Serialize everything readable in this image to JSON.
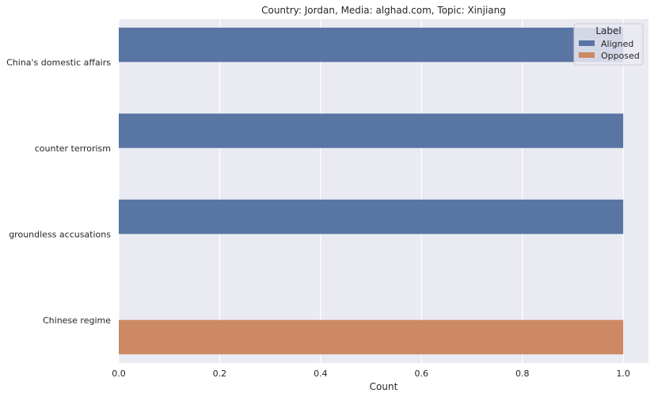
{
  "chart_data": {
    "type": "bar",
    "orientation": "horizontal",
    "title": "Country: Jordan, Media: alghad.com, Topic: Xinjiang",
    "xlabel": "Count",
    "ylabel": "",
    "categories": [
      "China's domestic affairs",
      "counter terrorism",
      "groundless accusations",
      "Chinese regime"
    ],
    "series": [
      {
        "name": "Aligned",
        "color": "#5875a4",
        "values": [
          1,
          1,
          1,
          0
        ]
      },
      {
        "name": "Opposed",
        "color": "#cc8963",
        "values": [
          0,
          0,
          0,
          1
        ]
      }
    ],
    "xlim": [
      0,
      1.05
    ],
    "xticks": [
      "0.0",
      "0.2",
      "0.4",
      "0.6",
      "0.8",
      "1.0"
    ],
    "grid": true,
    "legend": {
      "title": "Label",
      "position": "top-right"
    },
    "background": "#eaeaf2"
  }
}
